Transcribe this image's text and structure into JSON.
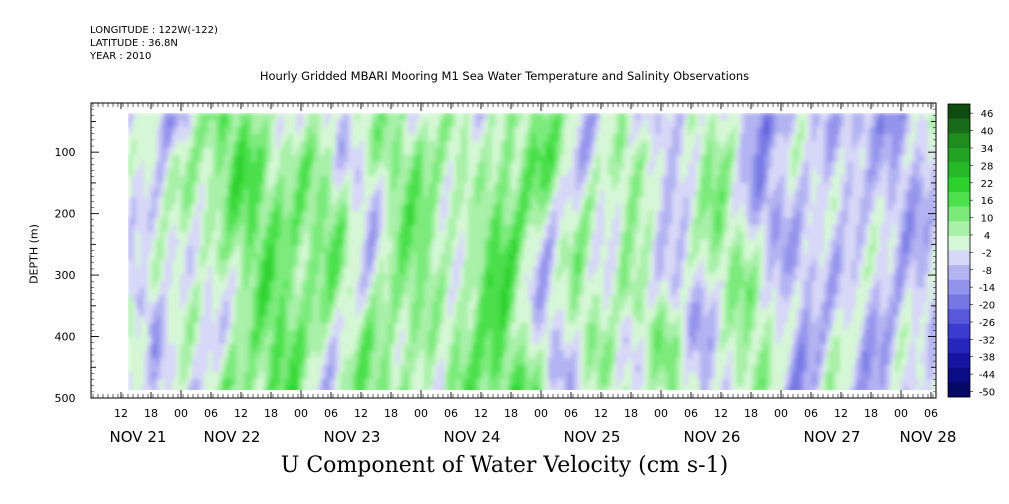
{
  "header": {
    "longitude": "LONGITUDE : 122W(-122)",
    "latitude": "LATITUDE : 36.8N",
    "year": "YEAR : 2010"
  },
  "chart_data": {
    "type": "heatmap",
    "title": "Hourly Gridded MBARI Mooring M1 Sea Water Temperature and Salinity Observations",
    "xlabel": "U Component of Water Velocity (cm s-1)",
    "ylabel": "DEPTH (m)",
    "ylim": [
      500,
      20
    ],
    "y_ticks": [
      100,
      200,
      300,
      400,
      500
    ],
    "x_tick_labels": [
      "12",
      "18",
      "00",
      "06",
      "12",
      "18",
      "00",
      "06",
      "12",
      "18",
      "00",
      "06",
      "12",
      "18",
      "00",
      "06",
      "12",
      "18",
      "00",
      "06",
      "12",
      "18",
      "00",
      "06",
      "12",
      "18",
      "00",
      "06"
    ],
    "x_date_labels": [
      "NOV 21",
      "NOV 22",
      "NOV 23",
      "NOV 24",
      "NOV 25",
      "NOV 26",
      "NOV 27",
      "NOV 28"
    ],
    "colorbar_labels": [
      "46",
      "40",
      "34",
      "28",
      "22",
      "16",
      "10",
      "4",
      "-2",
      "-8",
      "-14",
      "-20",
      "-26",
      "-32",
      "-38",
      "-44",
      "-50"
    ],
    "colorbar_range": [
      -50,
      50
    ],
    "colorbar_levels": [
      "#0f4a0f",
      "#186b18",
      "#1e8c1e",
      "#23a323",
      "#27b827",
      "#2dd12d",
      "#4ce04c",
      "#7bea7b",
      "#a9f0a9",
      "#d5f7d5",
      "#d7d7f7",
      "#b3b3f2",
      "#9494ec",
      "#7878e4",
      "#5858db",
      "#3b3bcf",
      "#2626bd",
      "#1515a2",
      "#0b0b86",
      "#070766"
    ]
  }
}
